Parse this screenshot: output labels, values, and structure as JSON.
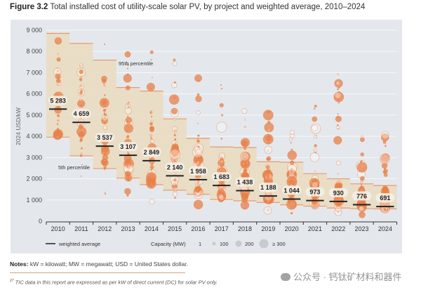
{
  "figure": {
    "label": "Figure 3.2",
    "caption": "Total installed cost of utility-scale solar PV, by project and weighted average, 2010–2024"
  },
  "chart_data": {
    "type": "scatter",
    "title": "Total installed cost of utility-scale solar PV, by project and weighted average, 2010–2024",
    "xlabel": "",
    "ylabel": "2024 USD/kW",
    "ylim": [
      0,
      9000
    ],
    "yticks": [
      0,
      1000,
      2000,
      3000,
      4000,
      5000,
      6000,
      7000,
      8000,
      9000
    ],
    "ytick_labels": [
      "0",
      "1 000",
      "2 000",
      "3 000",
      "4 000",
      "5 000",
      "6 000",
      "7 000",
      "8 000",
      "9 000"
    ],
    "grid": true,
    "categories": [
      "2010",
      "2011",
      "2012",
      "2013",
      "2014",
      "2015",
      "2016",
      "2017",
      "2018",
      "2019",
      "2020",
      "2021",
      "2022",
      "2023",
      "2024"
    ],
    "weighted_average": [
      5283,
      4659,
      3537,
      3107,
      2849,
      2140,
      1958,
      1683,
      1438,
      1188,
      1044,
      973,
      930,
      776,
      691
    ],
    "weighted_average_labels": [
      "5 283",
      "4 659",
      "3 537",
      "3 107",
      "2 849",
      "2 140",
      "1 958",
      "1 683",
      "1 438",
      "1 188",
      "1 044",
      "973",
      "930",
      "776",
      "691"
    ],
    "percentile_95": [
      8850,
      8380,
      7590,
      6300,
      6130,
      4820,
      3900,
      3500,
      3470,
      2800,
      2780,
      2240,
      2000,
      1760,
      1680
    ],
    "percentile_5": [
      3960,
      3080,
      2480,
      2030,
      1720,
      1460,
      1270,
      1020,
      960,
      880,
      770,
      710,
      620,
      590,
      580
    ],
    "project_range_max": [
      9000,
      8400,
      8400,
      8700,
      8200,
      7700,
      7000,
      6600,
      6000,
      5300,
      4300,
      5500,
      7000,
      4000,
      4300
    ],
    "project_range_min": [
      2100,
      1500,
      1250,
      1150,
      800,
      900,
      550,
      500,
      550,
      100,
      350,
      400,
      250,
      300,
      300
    ],
    "annotations": [
      {
        "text": "95th percentile",
        "near": "2013"
      },
      {
        "text": "5th percentile",
        "near": "2011"
      }
    ],
    "legend": {
      "placement": "bottom",
      "weighted_average_label": "weighted average",
      "capacity_title": "Capacity (MW)",
      "capacity_sizes": [
        "1",
        "100",
        "200",
        "≥ 300"
      ]
    },
    "colors": {
      "panel": "#e4e8ec",
      "box_fill": "#e9dcc2",
      "box_edge": "#e89a6c",
      "bubble": "#e8804a",
      "average_line": "#222222",
      "label_bg": "#f3efe6"
    }
  },
  "notes": {
    "label": "Notes:",
    "text": "kW = kilowatt; MW = megawatt; USD = United States dollar."
  },
  "footnote": {
    "marker": "27",
    "text": "TIC data in this report are expressed as per kW of direct current (DC) for solar PV only."
  },
  "watermark": "公众号 · 钙钛矿材料和器件"
}
